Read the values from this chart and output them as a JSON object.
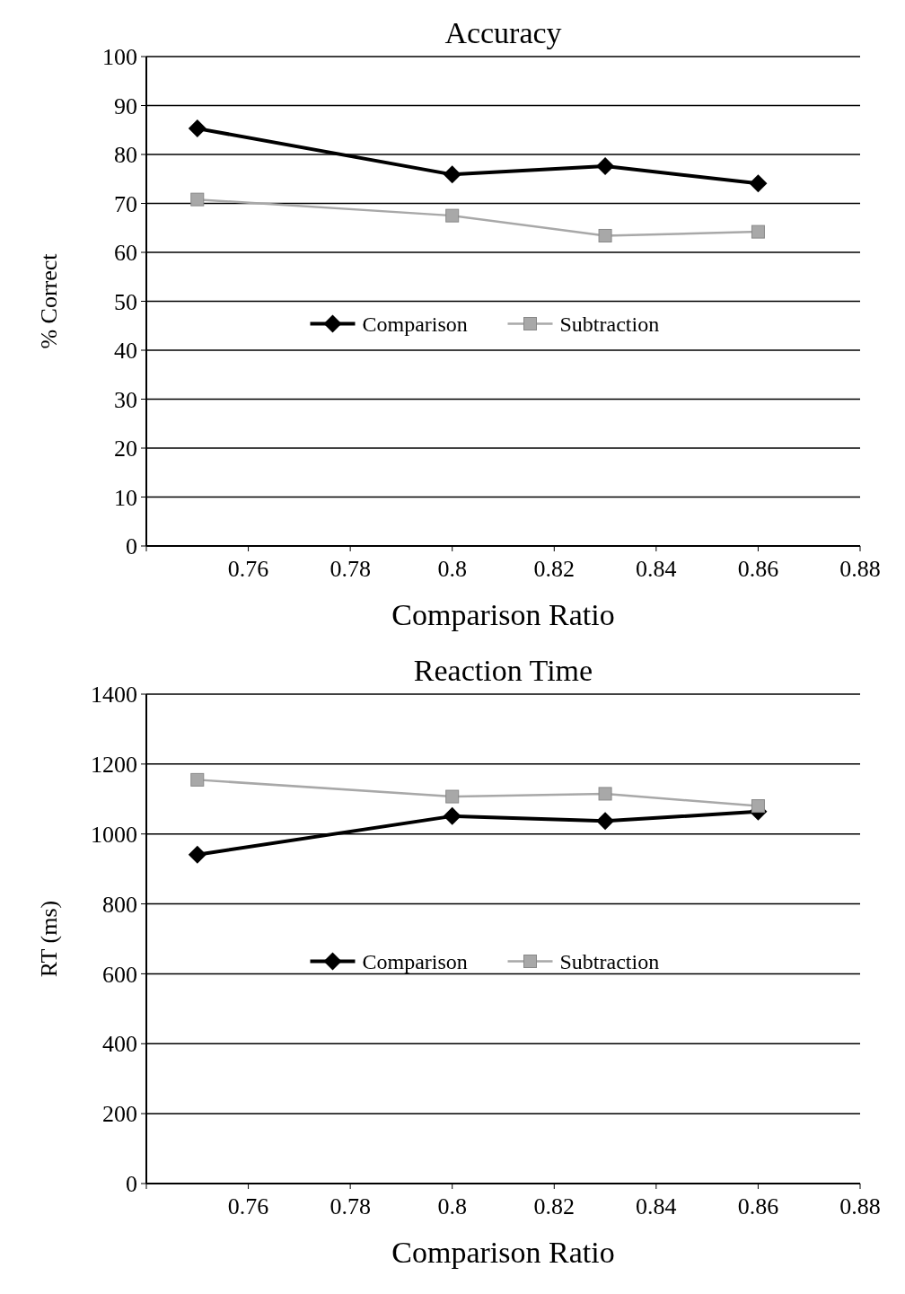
{
  "chart_data": [
    {
      "type": "line",
      "title": "Accuracy",
      "xlabel": "Comparison Ratio",
      "ylabel": "% Correct",
      "x": [
        0.75,
        0.8,
        0.83,
        0.86
      ],
      "xlim": [
        0.74,
        0.88
      ],
      "xticks": [
        {
          "value": 0.74,
          "label": null
        },
        0.76,
        0.78,
        0.8,
        0.82,
        0.84,
        0.86,
        0.88
      ],
      "ylim": [
        0,
        100
      ],
      "yticks": [
        0,
        10,
        20,
        30,
        40,
        50,
        60,
        70,
        80,
        90,
        100
      ],
      "grid": "y",
      "legend": "center",
      "series": [
        {
          "name": "Comparison",
          "color": "#000000",
          "marker": "diamond",
          "values": [
            85.3,
            75.9,
            77.6,
            74.1
          ]
        },
        {
          "name": "Subtraction",
          "color": "#a8a8a8",
          "marker": "square",
          "values": [
            70.8,
            67.5,
            63.4,
            64.2
          ]
        }
      ]
    },
    {
      "type": "line",
      "title": "Reaction Time",
      "xlabel": "Comparison Ratio",
      "ylabel": "RT (ms)",
      "x": [
        0.75,
        0.8,
        0.83,
        0.86
      ],
      "xlim": [
        0.74,
        0.88
      ],
      "xticks": [
        {
          "value": 0.74,
          "label": null
        },
        0.76,
        0.78,
        0.8,
        0.82,
        0.84,
        0.86,
        0.88
      ],
      "ylim": [
        0,
        1400
      ],
      "yticks": [
        0,
        200,
        400,
        600,
        800,
        1000,
        1200,
        1400
      ],
      "grid": "y",
      "legend": "center",
      "series": [
        {
          "name": "Comparison",
          "color": "#000000",
          "marker": "diamond",
          "values": [
            941,
            1051,
            1037,
            1064
          ]
        },
        {
          "name": "Subtraction",
          "color": "#a8a8a8",
          "marker": "square",
          "values": [
            1155,
            1107,
            1115,
            1080
          ]
        }
      ]
    }
  ]
}
